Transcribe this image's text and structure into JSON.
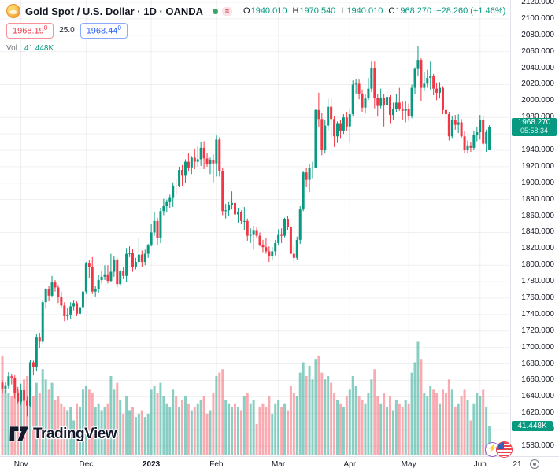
{
  "header": {
    "symbol_title": "Gold Spot / U.S. Dollar · 1D · OANDA",
    "delay_badge": "≈",
    "ohlc": {
      "o_key": "O",
      "o": "1940.010",
      "h_key": "H",
      "h": "1970.540",
      "l_key": "L",
      "l": "1940.010",
      "c_key": "C",
      "c": "1968.270",
      "change": "+28.260 (+1.46%)"
    },
    "sell": {
      "main": "1968.19",
      "sup": "0"
    },
    "spread": "25.0",
    "buy": {
      "main": "1968.44",
      "sup": "0"
    },
    "vol_key": "Vol",
    "vol_value": "41.448K"
  },
  "price_axis": {
    "ticks": [
      2120,
      2100,
      2080,
      2060,
      2040,
      2020,
      2000,
      1980,
      1960,
      1940,
      1920,
      1900,
      1880,
      1860,
      1840,
      1820,
      1800,
      1780,
      1760,
      1740,
      1720,
      1700,
      1680,
      1660,
      1640,
      1620,
      1600,
      1580
    ],
    "decimals": 3,
    "last_price": "1968.270",
    "countdown": "05:58:34",
    "volume_label": "41.448K"
  },
  "time_axis": {
    "labels": [
      {
        "text": "Nov",
        "i": 6
      },
      {
        "text": "Dec",
        "i": 27
      },
      {
        "text": "2023",
        "i": 48,
        "bold": true
      },
      {
        "text": "Feb",
        "i": 69
      },
      {
        "text": "Mar",
        "i": 89
      },
      {
        "text": "Apr",
        "i": 112
      },
      {
        "text": "May",
        "i": 131
      },
      {
        "text": "Jun",
        "i": 154
      },
      {
        "text": "21",
        "x": 657
      }
    ]
  },
  "watermark": "TradingView",
  "colors": {
    "up": "#089981",
    "down": "#f23645",
    "vol_up": "rgba(8,153,129,0.48)",
    "vol_down": "rgba(242,54,69,0.42)",
    "grid": "rgba(42,46,57,0.07)",
    "accent": "#089981",
    "sell_red": "#f23645",
    "buy_blue": "#2962ff",
    "text": "#131722",
    "muted": "#787b86"
  },
  "chart_data": {
    "type": "candlestick",
    "symbol": "Gold Spot / U.S. Dollar",
    "interval": "1D",
    "exchange": "OANDA",
    "last": {
      "o": 1940.01,
      "h": 1970.54,
      "l": 1940.01,
      "c": 1968.27,
      "change": 28.26,
      "change_pct": 1.46,
      "volume_k": 41.448
    },
    "ylim": [
      1580,
      2120
    ],
    "y_grid_step": 20,
    "x_range": [
      "2022-10-24",
      "2023-06-06"
    ],
    "legend_position": "top-left",
    "grid": true,
    "columns": [
      "date",
      "open",
      "high",
      "low",
      "close",
      "volume_thousands"
    ],
    "candles": [
      [
        "2022-10-24",
        1657,
        1660,
        1644,
        1650,
        145
      ],
      [
        "2022-10-25",
        1650,
        1658,
        1645,
        1653,
        95
      ],
      [
        "2022-10-26",
        1653,
        1670,
        1650,
        1665,
        90
      ],
      [
        "2022-10-27",
        1665,
        1668,
        1655,
        1663,
        85
      ],
      [
        "2022-10-28",
        1663,
        1666,
        1638,
        1645,
        100
      ],
      [
        "2022-10-31",
        1645,
        1652,
        1632,
        1634,
        95
      ],
      [
        "2022-11-01",
        1634,
        1656,
        1630,
        1648,
        90
      ],
      [
        "2022-11-02",
        1648,
        1658,
        1632,
        1635,
        110
      ],
      [
        "2022-11-03",
        1635,
        1640,
        1616,
        1629,
        115
      ],
      [
        "2022-11-04",
        1629,
        1685,
        1627,
        1682,
        130
      ],
      [
        "2022-11-07",
        1682,
        1684,
        1666,
        1676,
        85
      ],
      [
        "2022-11-08",
        1676,
        1716,
        1671,
        1712,
        105
      ],
      [
        "2022-11-09",
        1712,
        1718,
        1699,
        1707,
        90
      ],
      [
        "2022-11-10",
        1707,
        1758,
        1705,
        1755,
        125
      ],
      [
        "2022-11-11",
        1755,
        1772,
        1747,
        1771,
        110
      ],
      [
        "2022-11-14",
        1771,
        1775,
        1756,
        1763,
        95
      ],
      [
        "2022-11-15",
        1763,
        1787,
        1762,
        1779,
        105
      ],
      [
        "2022-11-16",
        1779,
        1782,
        1768,
        1773,
        80
      ],
      [
        "2022-11-17",
        1773,
        1776,
        1754,
        1761,
        85
      ],
      [
        "2022-11-18",
        1761,
        1768,
        1748,
        1751,
        75
      ],
      [
        "2022-11-21",
        1751,
        1755,
        1732,
        1738,
        70
      ],
      [
        "2022-11-22",
        1738,
        1748,
        1733,
        1740,
        65
      ],
      [
        "2022-11-23",
        1740,
        1755,
        1735,
        1750,
        70
      ],
      [
        "2022-11-25",
        1750,
        1758,
        1745,
        1754,
        50
      ],
      [
        "2022-11-28",
        1754,
        1756,
        1738,
        1741,
        75
      ],
      [
        "2022-11-29",
        1741,
        1755,
        1739,
        1749,
        70
      ],
      [
        "2022-11-30",
        1749,
        1770,
        1742,
        1768,
        95
      ],
      [
        "2022-12-01",
        1768,
        1804,
        1765,
        1803,
        100
      ],
      [
        "2022-12-02",
        1803,
        1806,
        1784,
        1798,
        95
      ],
      [
        "2022-12-05",
        1798,
        1810,
        1765,
        1768,
        90
      ],
      [
        "2022-12-06",
        1768,
        1775,
        1762,
        1771,
        70
      ],
      [
        "2022-12-07",
        1771,
        1788,
        1766,
        1782,
        75
      ],
      [
        "2022-12-08",
        1782,
        1793,
        1778,
        1786,
        65
      ],
      [
        "2022-12-09",
        1786,
        1800,
        1782,
        1789,
        70
      ],
      [
        "2022-12-12",
        1789,
        1800,
        1778,
        1781,
        75
      ],
      [
        "2022-12-13",
        1781,
        1814,
        1779,
        1792,
        115
      ],
      [
        "2022-12-14",
        1792,
        1811,
        1786,
        1807,
        95
      ],
      [
        "2022-12-15",
        1807,
        1809,
        1773,
        1777,
        105
      ],
      [
        "2022-12-16",
        1777,
        1795,
        1775,
        1793,
        80
      ],
      [
        "2022-12-19",
        1793,
        1798,
        1783,
        1787,
        60
      ],
      [
        "2022-12-20",
        1787,
        1821,
        1780,
        1814,
        85
      ],
      [
        "2022-12-21",
        1814,
        1823,
        1810,
        1815,
        65
      ],
      [
        "2022-12-22",
        1815,
        1820,
        1792,
        1798,
        70
      ],
      [
        "2022-12-23",
        1798,
        1809,
        1795,
        1804,
        55
      ],
      [
        "2022-12-27",
        1804,
        1833,
        1801,
        1813,
        60
      ],
      [
        "2022-12-28",
        1813,
        1818,
        1798,
        1804,
        65
      ],
      [
        "2022-12-29",
        1804,
        1819,
        1800,
        1814,
        55
      ],
      [
        "2022-12-30",
        1814,
        1826,
        1809,
        1824,
        60
      ],
      [
        "2023-01-03",
        1824,
        1850,
        1823,
        1840,
        95
      ],
      [
        "2023-01-04",
        1840,
        1865,
        1836,
        1854,
        100
      ],
      [
        "2023-01-05",
        1854,
        1858,
        1825,
        1833,
        90
      ],
      [
        "2023-01-06",
        1833,
        1870,
        1827,
        1866,
        105
      ],
      [
        "2023-01-09",
        1866,
        1881,
        1861,
        1872,
        85
      ],
      [
        "2023-01-10",
        1872,
        1880,
        1865,
        1877,
        75
      ],
      [
        "2023-01-11",
        1877,
        1886,
        1870,
        1882,
        70
      ],
      [
        "2023-01-12",
        1882,
        1901,
        1871,
        1897,
        95
      ],
      [
        "2023-01-13",
        1897,
        1905,
        1886,
        1896,
        85
      ],
      [
        "2023-01-16",
        1896,
        1920,
        1895,
        1916,
        70
      ],
      [
        "2023-01-17",
        1916,
        1922,
        1896,
        1909,
        80
      ],
      [
        "2023-01-18",
        1909,
        1929,
        1900,
        1926,
        85
      ],
      [
        "2023-01-19",
        1926,
        1936,
        1914,
        1919,
        75
      ],
      [
        "2023-01-20",
        1919,
        1933,
        1911,
        1931,
        65
      ],
      [
        "2023-01-23",
        1931,
        1942,
        1917,
        1926,
        70
      ],
      [
        "2023-01-24",
        1926,
        1945,
        1920,
        1929,
        75
      ],
      [
        "2023-01-25",
        1929,
        1950,
        1921,
        1943,
        80
      ],
      [
        "2023-01-26",
        1943,
        1951,
        1917,
        1930,
        85
      ],
      [
        "2023-01-27",
        1930,
        1937,
        1920,
        1923,
        60
      ],
      [
        "2023-01-30",
        1923,
        1931,
        1911,
        1928,
        65
      ],
      [
        "2023-01-31",
        1928,
        1935,
        1901,
        1924,
        90
      ],
      [
        "2023-02-01",
        1924,
        1958,
        1908,
        1953,
        115
      ],
      [
        "2023-02-02",
        1953,
        1956,
        1908,
        1915,
        120
      ],
      [
        "2023-02-03",
        1915,
        1919,
        1861,
        1866,
        125
      ],
      [
        "2023-02-06",
        1866,
        1875,
        1857,
        1867,
        80
      ],
      [
        "2023-02-07",
        1867,
        1877,
        1860,
        1873,
        75
      ],
      [
        "2023-02-08",
        1873,
        1890,
        1868,
        1876,
        70
      ],
      [
        "2023-02-09",
        1876,
        1880,
        1858,
        1862,
        75
      ],
      [
        "2023-02-10",
        1862,
        1870,
        1852,
        1865,
        70
      ],
      [
        "2023-02-13",
        1865,
        1867,
        1850,
        1854,
        65
      ],
      [
        "2023-02-14",
        1854,
        1871,
        1843,
        1854,
        85
      ],
      [
        "2023-02-15",
        1854,
        1857,
        1830,
        1836,
        90
      ],
      [
        "2023-02-16",
        1836,
        1845,
        1827,
        1837,
        75
      ],
      [
        "2023-02-17",
        1837,
        1848,
        1819,
        1842,
        80
      ],
      [
        "2023-02-20",
        1842,
        1846,
        1833,
        1836,
        45
      ],
      [
        "2023-02-21",
        1836,
        1840,
        1823,
        1825,
        70
      ],
      [
        "2023-02-22",
        1825,
        1831,
        1816,
        1822,
        75
      ],
      [
        "2023-02-23",
        1822,
        1833,
        1814,
        1817,
        70
      ],
      [
        "2023-02-24",
        1817,
        1823,
        1804,
        1811,
        85
      ],
      [
        "2023-02-27",
        1811,
        1822,
        1806,
        1817,
        60
      ],
      [
        "2023-02-28",
        1817,
        1831,
        1812,
        1827,
        75
      ],
      [
        "2023-03-01",
        1827,
        1844,
        1824,
        1837,
        80
      ],
      [
        "2023-03-02",
        1837,
        1845,
        1827,
        1836,
        70
      ],
      [
        "2023-03-03",
        1836,
        1858,
        1834,
        1856,
        75
      ],
      [
        "2023-03-06",
        1856,
        1860,
        1843,
        1847,
        65
      ],
      [
        "2023-03-07",
        1847,
        1850,
        1810,
        1814,
        100
      ],
      [
        "2023-03-08",
        1814,
        1824,
        1804,
        1809,
        90
      ],
      [
        "2023-03-09",
        1809,
        1835,
        1806,
        1831,
        85
      ],
      [
        "2023-03-10",
        1831,
        1872,
        1826,
        1868,
        120
      ],
      [
        "2023-03-13",
        1868,
        1914,
        1866,
        1913,
        135
      ],
      [
        "2023-03-14",
        1913,
        1918,
        1895,
        1904,
        115
      ],
      [
        "2023-03-15",
        1904,
        1923,
        1889,
        1918,
        130
      ],
      [
        "2023-03-16",
        1918,
        1926,
        1906,
        1919,
        110
      ],
      [
        "2023-03-17",
        1919,
        1990,
        1918,
        1989,
        140
      ],
      [
        "2023-03-20",
        1989,
        2010,
        1968,
        1978,
        145
      ],
      [
        "2023-03-21",
        1978,
        1985,
        1934,
        1940,
        120
      ],
      [
        "2023-03-22",
        1940,
        1977,
        1936,
        1970,
        110
      ],
      [
        "2023-03-23",
        1970,
        2003,
        1963,
        1993,
        115
      ],
      [
        "2023-03-24",
        1993,
        2003,
        1955,
        1978,
        105
      ],
      [
        "2023-03-27",
        1978,
        1982,
        1944,
        1957,
        90
      ],
      [
        "2023-03-28",
        1957,
        1975,
        1949,
        1973,
        80
      ],
      [
        "2023-03-29",
        1973,
        1977,
        1954,
        1964,
        75
      ],
      [
        "2023-03-30",
        1964,
        1984,
        1960,
        1980,
        70
      ],
      [
        "2023-03-31",
        1980,
        1987,
        1963,
        1969,
        85
      ],
      [
        "2023-04-03",
        1969,
        1990,
        1949,
        1984,
        95
      ],
      [
        "2023-04-04",
        1984,
        2025,
        1981,
        2020,
        115
      ],
      [
        "2023-04-05",
        2020,
        2027,
        2008,
        2021,
        100
      ],
      [
        "2023-04-06",
        2021,
        2026,
        2002,
        2009,
        85
      ],
      [
        "2023-04-10",
        2009,
        2014,
        1987,
        1992,
        80
      ],
      [
        "2023-04-11",
        1992,
        2008,
        1985,
        2003,
        75
      ],
      [
        "2023-04-12",
        2003,
        2028,
        2001,
        2015,
        90
      ],
      [
        "2023-04-13",
        2015,
        2048,
        2011,
        2040,
        110
      ],
      [
        "2023-04-14",
        2040,
        2048,
        1991,
        2004,
        125
      ],
      [
        "2023-04-17",
        2004,
        2009,
        1981,
        1994,
        85
      ],
      [
        "2023-04-18",
        1994,
        2015,
        1991,
        2004,
        75
      ],
      [
        "2023-04-19",
        2004,
        2008,
        1969,
        1995,
        90
      ],
      [
        "2023-04-20",
        1995,
        2012,
        1991,
        2005,
        70
      ],
      [
        "2023-04-21",
        2005,
        2007,
        1973,
        1983,
        85
      ],
      [
        "2023-04-24",
        1983,
        1998,
        1977,
        1990,
        65
      ],
      [
        "2023-04-25",
        1990,
        2009,
        1986,
        1998,
        80
      ],
      [
        "2023-04-26",
        1998,
        2016,
        1988,
        1990,
        75
      ],
      [
        "2023-04-27",
        1990,
        1999,
        1977,
        1988,
        70
      ],
      [
        "2023-04-28",
        1988,
        2000,
        1974,
        1990,
        80
      ],
      [
        "2023-05-01",
        1990,
        1997,
        1976,
        1982,
        75
      ],
      [
        "2023-05-02",
        1982,
        2020,
        1979,
        2016,
        120
      ],
      [
        "2023-05-03",
        2016,
        2041,
        2008,
        2039,
        135
      ],
      [
        "2023-05-04",
        2039,
        2067,
        2031,
        2050,
        165
      ],
      [
        "2023-05-05",
        2050,
        2052,
        2000,
        2016,
        140
      ],
      [
        "2023-05-08",
        2016,
        2035,
        2012,
        2021,
        90
      ],
      [
        "2023-05-09",
        2021,
        2038,
        2016,
        2028,
        85
      ],
      [
        "2023-05-10",
        2028,
        2048,
        2014,
        2030,
        100
      ],
      [
        "2023-05-11",
        2030,
        2033,
        2007,
        2015,
        95
      ],
      [
        "2023-05-12",
        2015,
        2022,
        2001,
        2010,
        90
      ],
      [
        "2023-05-15",
        2010,
        2023,
        2003,
        2016,
        75
      ],
      [
        "2023-05-16",
        2016,
        2018,
        1984,
        1989,
        95
      ],
      [
        "2023-05-17",
        1989,
        1993,
        1974,
        1984,
        90
      ],
      [
        "2023-05-18",
        1984,
        1986,
        1952,
        1957,
        110
      ],
      [
        "2023-05-19",
        1957,
        1982,
        1954,
        1977,
        95
      ],
      [
        "2023-05-22",
        1977,
        1983,
        1965,
        1971,
        70
      ],
      [
        "2023-05-23",
        1971,
        1984,
        1961,
        1974,
        75
      ],
      [
        "2023-05-24",
        1974,
        1978,
        1955,
        1957,
        85
      ],
      [
        "2023-05-25",
        1957,
        1963,
        1937,
        1940,
        95
      ],
      [
        "2023-05-26",
        1940,
        1952,
        1936,
        1946,
        80
      ],
      [
        "2023-05-29",
        1946,
        1950,
        1938,
        1943,
        50
      ],
      [
        "2023-05-30",
        1943,
        1964,
        1940,
        1959,
        75
      ],
      [
        "2023-05-31",
        1959,
        1968,
        1951,
        1962,
        90
      ],
      [
        "2023-06-01",
        1962,
        1983,
        1953,
        1977,
        85
      ],
      [
        "2023-06-02",
        1977,
        1982,
        1946,
        1948,
        95
      ],
      [
        "2023-06-05",
        1948,
        1965,
        1938,
        1962,
        70
      ],
      [
        "2023-06-06",
        1940.01,
        1970.54,
        1940.01,
        1968.27,
        41.448
      ]
    ]
  }
}
